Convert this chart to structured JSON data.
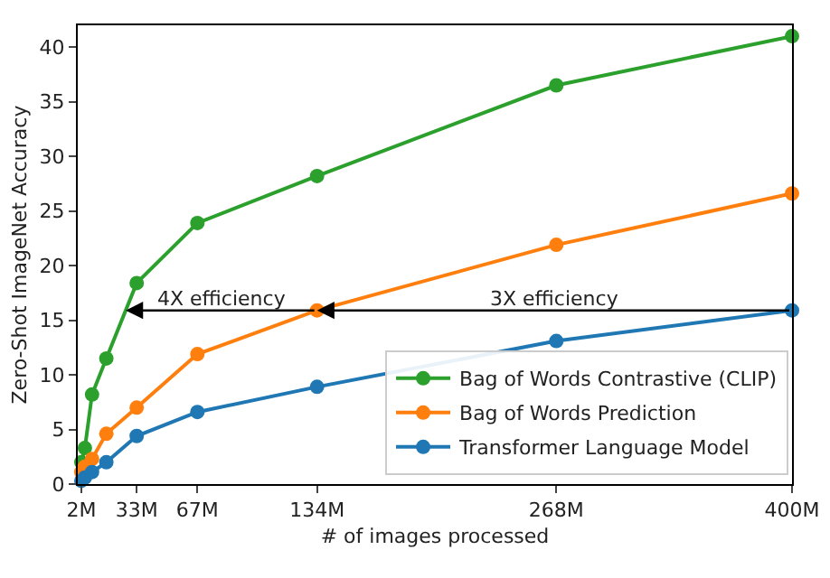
{
  "chart_data": {
    "type": "line",
    "xlabel": "# of images processed",
    "ylabel": "Zero-Shot ImageNet Accuracy",
    "x": [
      2,
      4,
      8,
      16,
      33,
      67,
      134,
      268,
      400
    ],
    "series": [
      {
        "name": "Bag of Words Contrastive (CLIP)",
        "color": "#2ca02c",
        "values": [
          2.0,
          3.3,
          8.2,
          11.5,
          18.4,
          23.9,
          28.2,
          36.5,
          41.0
        ]
      },
      {
        "name": "Bag of Words Prediction",
        "color": "#ff7f0e",
        "values": [
          1.1,
          1.6,
          2.3,
          4.6,
          7.0,
          11.9,
          15.9,
          21.9,
          26.6
        ]
      },
      {
        "name": "Transformer Language Model",
        "color": "#1f77b4",
        "values": [
          0.3,
          0.6,
          1.1,
          2.0,
          4.4,
          6.6,
          8.9,
          13.1,
          15.9
        ]
      }
    ],
    "xlim": [
      0,
      400
    ],
    "xticks": [
      {
        "value": 2,
        "label": "2M"
      },
      {
        "value": 33,
        "label": "33M"
      },
      {
        "value": 67,
        "label": "67M"
      },
      {
        "value": 134,
        "label": "134M"
      },
      {
        "value": 268,
        "label": "268M"
      },
      {
        "value": 400,
        "label": "400M"
      }
    ],
    "ylim": [
      0,
      42
    ],
    "yticks": [
      0,
      5,
      10,
      15,
      20,
      25,
      30,
      35,
      40
    ],
    "annotations": [
      "4X efficiency",
      "3X efficiency"
    ],
    "grid": false,
    "legend": "bottom right",
    "marker": "circle",
    "line_style": "solid"
  }
}
